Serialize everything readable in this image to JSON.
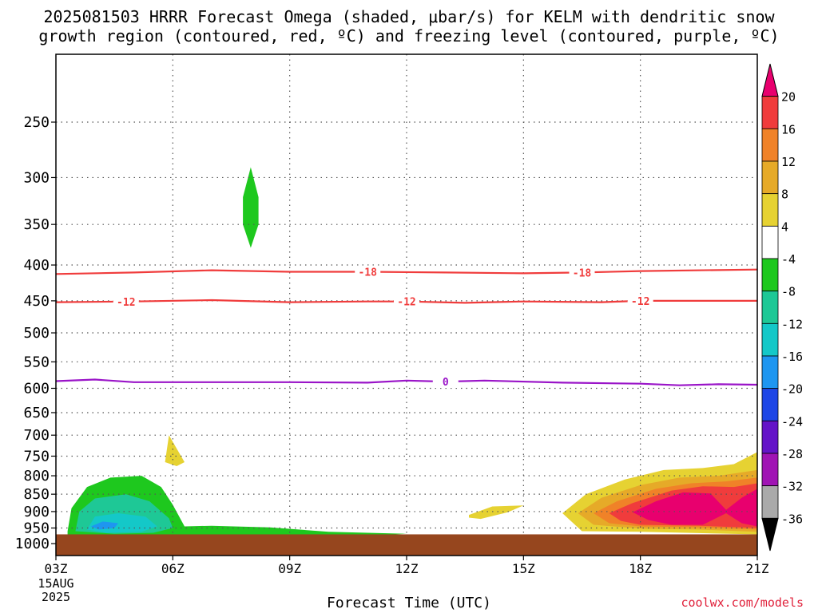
{
  "chart_data": {
    "type": "heatmap",
    "title_line1": "2025081503 HRRR Forecast Omega (shaded, μbar/s) for KELM with dendritic snow",
    "title_line2": "growth region (contoured, red, ºC) and freezing level (contoured, purple, ºC)",
    "xlabel": "Forecast Time (UTC)",
    "credit": "coolwx.com/models",
    "x_ticks": [
      {
        "hour": 3,
        "label": "03Z",
        "sub1": "15AUG",
        "sub2": "2025"
      },
      {
        "hour": 6,
        "label": "06Z"
      },
      {
        "hour": 9,
        "label": "09Z"
      },
      {
        "hour": 12,
        "label": "12Z"
      },
      {
        "hour": 15,
        "label": "15Z"
      },
      {
        "hour": 18,
        "label": "18Z"
      },
      {
        "hour": 21,
        "label": "21Z"
      }
    ],
    "x_range_hours": [
      3,
      21
    ],
    "y_axis": "pressure (hPa), log scale, inverted",
    "y_ticks": [
      250,
      300,
      350,
      400,
      450,
      500,
      550,
      600,
      650,
      700,
      750,
      800,
      850,
      900,
      950,
      1000
    ],
    "y_range": [
      200,
      1040
    ],
    "surface_pressure": 970,
    "colorbar": {
      "labels": [
        "20",
        "16",
        "12",
        "8",
        "4",
        "-4",
        "-8",
        "-12",
        "-16",
        "-20",
        "-24",
        "-28",
        "-32",
        "-36"
      ],
      "colors": [
        "#e8006e",
        "#f03c3c",
        "#f08228",
        "#e6aa28",
        "#e6d232",
        "#ffffff",
        "#1ec81e",
        "#1ec896",
        "#14c8c8",
        "#1e96f0",
        "#1e46e6",
        "#6414c8",
        "#a014b4",
        "#aaaaaa",
        "#000000"
      ]
    },
    "contours": [
      {
        "value": "-18",
        "color": "#f03c3c",
        "labels_at_hours": [
          11,
          16.5
        ],
        "points": [
          [
            3,
            412
          ],
          [
            5,
            410
          ],
          [
            7,
            407
          ],
          [
            9,
            409
          ],
          [
            11,
            409
          ],
          [
            13,
            410
          ],
          [
            15,
            411
          ],
          [
            16.5,
            410
          ],
          [
            18,
            408
          ],
          [
            21,
            406
          ]
        ]
      },
      {
        "value": "-12",
        "color": "#f03c3c",
        "labels_at_hours": [
          4.8,
          12,
          18
        ],
        "points": [
          [
            3,
            452
          ],
          [
            5,
            451
          ],
          [
            7,
            449
          ],
          [
            9,
            452
          ],
          [
            11,
            451
          ],
          [
            12,
            451
          ],
          [
            13.5,
            453
          ],
          [
            15,
            451
          ],
          [
            17,
            452
          ],
          [
            18,
            450
          ],
          [
            21,
            450
          ]
        ]
      },
      {
        "value": "0",
        "color": "#9a14c8",
        "labels_at_hours": [
          13
        ],
        "points": [
          [
            3,
            586
          ],
          [
            4,
            583
          ],
          [
            5,
            588
          ],
          [
            7,
            588
          ],
          [
            9,
            588
          ],
          [
            11,
            589
          ],
          [
            12,
            585
          ],
          [
            13,
            587
          ],
          [
            14,
            585
          ],
          [
            16,
            589
          ],
          [
            18,
            591
          ],
          [
            19,
            594
          ],
          [
            20,
            592
          ],
          [
            21,
            593
          ]
        ]
      }
    ],
    "shaded_regions": [
      {
        "value_bin": "-8 to -4",
        "color": "#1ec81e",
        "outline": [
          [
            3.3,
            960
          ],
          [
            3.4,
            890
          ],
          [
            3.8,
            830
          ],
          [
            4.4,
            805
          ],
          [
            5.2,
            800
          ],
          [
            5.7,
            830
          ],
          [
            6.0,
            880
          ],
          [
            6.3,
            945
          ],
          [
            7,
            943
          ],
          [
            8.5,
            948
          ],
          [
            10,
            962
          ],
          [
            12,
            968
          ],
          [
            11,
            975
          ],
          [
            9,
            978
          ],
          [
            6,
            978
          ],
          [
            4,
            978
          ],
          [
            3.3,
            975
          ]
        ]
      },
      {
        "value_bin": "-8 to -4",
        "color": "#1ec81e",
        "outline": [
          [
            8.0,
            290
          ],
          [
            8.2,
            320
          ],
          [
            8.2,
            350
          ],
          [
            8.0,
            378
          ],
          [
            7.8,
            350
          ],
          [
            7.8,
            320
          ]
        ]
      },
      {
        "value_bin": "-12 to -8",
        "color": "#1ec896",
        "outline": [
          [
            3.5,
            960
          ],
          [
            3.6,
            900
          ],
          [
            4.0,
            862
          ],
          [
            4.8,
            850
          ],
          [
            5.4,
            870
          ],
          [
            5.9,
            920
          ],
          [
            6.0,
            950
          ],
          [
            5.5,
            965
          ],
          [
            4.5,
            968
          ]
        ]
      },
      {
        "value_bin": "-16 to -12",
        "color": "#14c8c8",
        "outline": [
          [
            3.8,
            955
          ],
          [
            4.0,
            915
          ],
          [
            4.6,
            905
          ],
          [
            5.3,
            915
          ],
          [
            5.6,
            945
          ],
          [
            5.2,
            962
          ],
          [
            4.3,
            965
          ]
        ]
      },
      {
        "value_bin": "-20 to -16",
        "color": "#1e96f0",
        "outline": [
          [
            3.9,
            945
          ],
          [
            4.2,
            930
          ],
          [
            4.6,
            935
          ],
          [
            4.5,
            950
          ],
          [
            4.1,
            955
          ]
        ]
      },
      {
        "value_bin": "4 to 8",
        "color": "#e6d232",
        "outline": [
          [
            5.9,
            700
          ],
          [
            6.3,
            765
          ],
          [
            6.1,
            775
          ],
          [
            5.8,
            765
          ]
        ]
      },
      {
        "value_bin": "4 to 8",
        "color": "#e6d232",
        "outline": [
          [
            13.6,
            910
          ],
          [
            14.2,
            885
          ],
          [
            15.0,
            882
          ],
          [
            14.6,
            902
          ],
          [
            13.9,
            922
          ],
          [
            13.6,
            918
          ]
        ]
      },
      {
        "value_bin": "4 to 8",
        "color": "#e6d232",
        "outline": [
          [
            16.0,
            905
          ],
          [
            16.6,
            850
          ],
          [
            17.6,
            810
          ],
          [
            18.6,
            785
          ],
          [
            19.6,
            780
          ],
          [
            20.4,
            770
          ],
          [
            21,
            740
          ],
          [
            21,
            970
          ],
          [
            19.5,
            966
          ],
          [
            18,
            962
          ],
          [
            16.5,
            960
          ]
        ]
      },
      {
        "value_bin": "8 to 12",
        "color": "#e6aa28",
        "outline": [
          [
            16.4,
            905
          ],
          [
            17.0,
            860
          ],
          [
            18.0,
            825
          ],
          [
            19.0,
            805
          ],
          [
            20.0,
            800
          ],
          [
            21,
            785
          ],
          [
            21,
            962
          ],
          [
            19.5,
            955
          ],
          [
            18,
            952
          ],
          [
            16.8,
            940
          ]
        ]
      },
      {
        "value_bin": "12 to 16",
        "color": "#f08228",
        "outline": [
          [
            16.8,
            905
          ],
          [
            17.4,
            870
          ],
          [
            18.4,
            835
          ],
          [
            19.3,
            820
          ],
          [
            20.2,
            815
          ],
          [
            21,
            805
          ],
          [
            21,
            955
          ],
          [
            19.5,
            948
          ],
          [
            18,
            945
          ],
          [
            17.2,
            935
          ]
        ]
      },
      {
        "value_bin": "16 to 20",
        "color": "#f03c3c",
        "outline": [
          [
            17.2,
            905
          ],
          [
            17.8,
            875
          ],
          [
            18.8,
            840
          ],
          [
            19.6,
            828
          ],
          [
            20.4,
            830
          ],
          [
            21,
            820
          ],
          [
            21,
            950
          ],
          [
            19.5,
            943
          ],
          [
            18,
            940
          ],
          [
            17.5,
            928
          ]
        ]
      },
      {
        "value_bin": ">20",
        "color": "#e8006e",
        "outline": [
          [
            17.8,
            902
          ],
          [
            18.4,
            870
          ],
          [
            19.1,
            845
          ],
          [
            19.8,
            848
          ],
          [
            20.2,
            895
          ],
          [
            20.6,
            860
          ],
          [
            21,
            835
          ],
          [
            21,
            945
          ],
          [
            20.6,
            935
          ],
          [
            20.2,
            905
          ],
          [
            19.6,
            940
          ],
          [
            18.8,
            940
          ],
          [
            18.2,
            925
          ]
        ]
      }
    ]
  }
}
